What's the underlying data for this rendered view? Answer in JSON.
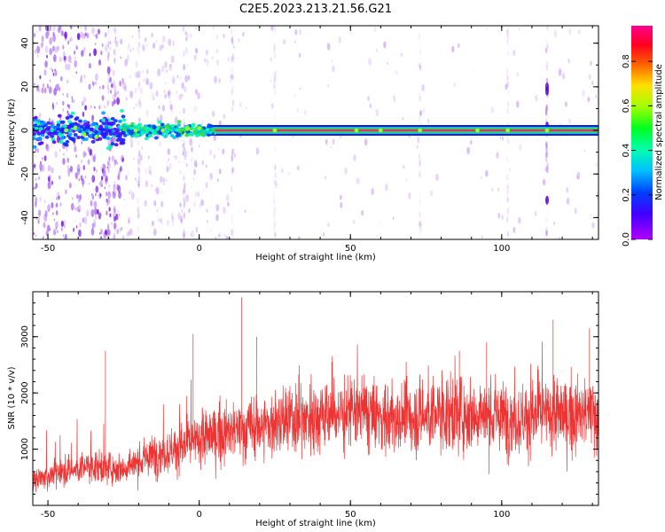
{
  "title": "C2E5.2023.213.21.56.G21",
  "colors": {
    "snr_trace": "#ee3333",
    "scatter_point": "#b070f0",
    "line_core": "#e03070"
  },
  "chart_data": [
    {
      "type": "heatmap",
      "xlabel": "Height of straight line (km)",
      "ylabel": "Frequency (Hz)",
      "xlim": [
        -55,
        132
      ],
      "ylim": [
        -50,
        48
      ],
      "xticks": [
        -50,
        0,
        50,
        100
      ],
      "yticks": [
        -40,
        -20,
        0,
        20,
        40
      ],
      "grid": false,
      "colorbar": {
        "label": "Normalized spectral amplitude",
        "range": [
          0.0,
          0.96
        ],
        "ticks": [
          "0.0",
          "0.2",
          "0.4",
          "0.6",
          "0.8"
        ],
        "colormap": "hsv-rainbow (violet→blue→cyan→green→yellow→red→magenta)"
      },
      "dominant_frequency_hz": 0,
      "notes_visible": "strong persistent line near 0 Hz from ~-25 km to 132 km; scattered low-amplitude energy mostly below 12 km"
    },
    {
      "type": "line",
      "xlabel": "Height of straight line (km)",
      "ylabel": "SNR (10 * v/v)",
      "xlim": [
        -55,
        132
      ],
      "ylim": [
        0,
        3800
      ],
      "xticks": [
        -50,
        0,
        50,
        100
      ],
      "yticks": [
        1000,
        2000,
        3000
      ],
      "grid": false,
      "series": [
        {
          "x_range": [
            -55,
            132
          ],
          "trend": [
            [
              -55,
              450
            ],
            [
              -45,
              600
            ],
            [
              -35,
              700
            ],
            [
              -25,
              650
            ],
            [
              -15,
              900
            ],
            [
              -5,
              1050
            ],
            [
              5,
              1250
            ],
            [
              15,
              1350
            ],
            [
              25,
              1450
            ],
            [
              35,
              1550
            ],
            [
              45,
              1650
            ],
            [
              55,
              1650
            ],
            [
              65,
              1500
            ],
            [
              75,
              1600
            ],
            [
              85,
              1650
            ],
            [
              95,
              1600
            ],
            [
              105,
              1550
            ],
            [
              115,
              1600
            ],
            [
              125,
              1600
            ],
            [
              132,
              1650
            ]
          ],
          "peaks": [
            [
              14,
              3700
            ],
            [
              19,
              3000
            ],
            [
              -2,
              3050
            ],
            [
              117,
              3300
            ],
            [
              129,
              3150
            ],
            [
              -31,
              2750
            ],
            [
              44,
              2650
            ],
            [
              86,
              2750
            ],
            [
              95,
              2900
            ]
          ]
        }
      ]
    }
  ]
}
